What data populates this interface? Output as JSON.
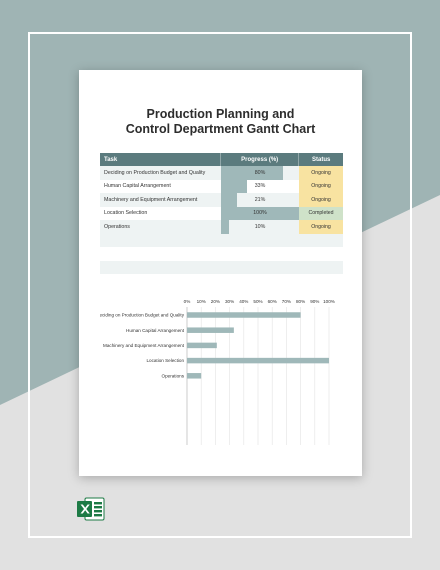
{
  "document": {
    "title_line1": "Production Planning and",
    "title_line2": "Control Department Gantt Chart"
  },
  "table": {
    "headers": {
      "task": "Task",
      "progress": "Progress (%)",
      "status": "Status"
    },
    "rows": [
      {
        "task": "Deciding on Production Budget and Quality",
        "progress_label": "80%",
        "progress": 0.8,
        "status": "Ongoing"
      },
      {
        "task": "Human Capital Arrangement",
        "progress_label": "33%",
        "progress": 0.33,
        "status": "Ongoing"
      },
      {
        "task": "Machinery and Equipment Arrangement",
        "progress_label": "21%",
        "progress": 0.21,
        "status": "Ongoing"
      },
      {
        "task": "Location Selection",
        "progress_label": "100%",
        "progress": 1.0,
        "status": "Completed"
      },
      {
        "task": "Operations",
        "progress_label": "10%",
        "progress": 0.1,
        "status": "Ongoing"
      }
    ],
    "colors": {
      "header": "#5b7b7e",
      "bar": "#9fb8b9",
      "ongoing": "#f8e3a1",
      "completed": "#cfe2c9"
    }
  },
  "chart_data": {
    "type": "bar",
    "orientation": "horizontal",
    "categories": [
      "Deciding on Production Budget and Quality",
      "Human Capital Arrangement",
      "Machinery and Equipment Arrangement",
      "Location Selection",
      "Operations"
    ],
    "values": [
      80,
      33,
      21,
      100,
      10
    ],
    "xticks": [
      "0%",
      "10%",
      "20%",
      "30%",
      "40%",
      "50%",
      "60%",
      "70%",
      "80%",
      "90%",
      "100%"
    ],
    "xlim": [
      0,
      100
    ],
    "grid": true,
    "bar_color": "#9fb8b9",
    "title": "",
    "xlabel": "",
    "ylabel": ""
  },
  "icons": {
    "file_type": "excel-icon"
  }
}
